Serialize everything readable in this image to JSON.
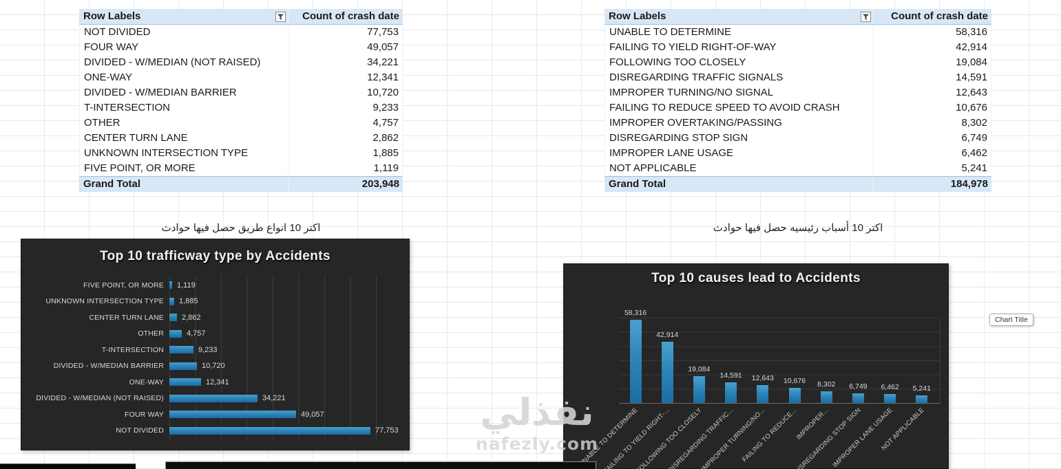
{
  "tables": {
    "left": {
      "header_label": "Row Labels",
      "header_count": "Count of crash date",
      "rows": [
        {
          "label": "NOT DIVIDED",
          "value": "77,753"
        },
        {
          "label": "FOUR WAY",
          "value": "49,057"
        },
        {
          "label": "DIVIDED - W/MEDIAN (NOT RAISED)",
          "value": "34,221"
        },
        {
          "label": "ONE-WAY",
          "value": "12,341"
        },
        {
          "label": "DIVIDED - W/MEDIAN BARRIER",
          "value": "10,720"
        },
        {
          "label": "T-INTERSECTION",
          "value": "9,233"
        },
        {
          "label": "OTHER",
          "value": "4,757"
        },
        {
          "label": "CENTER TURN LANE",
          "value": "2,862"
        },
        {
          "label": "UNKNOWN INTERSECTION TYPE",
          "value": "1,885"
        },
        {
          "label": "FIVE POINT, OR MORE",
          "value": "1,119"
        }
      ],
      "total_label": "Grand Total",
      "total_value": "203,948"
    },
    "right": {
      "header_label": "Row Labels",
      "header_count": "Count of crash date",
      "rows": [
        {
          "label": "UNABLE TO DETERMINE",
          "value": "58,316"
        },
        {
          "label": "FAILING TO YIELD RIGHT-OF-WAY",
          "value": "42,914"
        },
        {
          "label": "FOLLOWING TOO CLOSELY",
          "value": "19,084"
        },
        {
          "label": "DISREGARDING TRAFFIC SIGNALS",
          "value": "14,591"
        },
        {
          "label": "IMPROPER TURNING/NO SIGNAL",
          "value": "12,643"
        },
        {
          "label": "FAILING TO REDUCE SPEED TO AVOID CRASH",
          "value": "10,676"
        },
        {
          "label": "IMPROPER OVERTAKING/PASSING",
          "value": "8,302"
        },
        {
          "label": "DISREGARDING STOP SIGN",
          "value": "6,749"
        },
        {
          "label": "IMPROPER LANE USAGE",
          "value": "6,462"
        },
        {
          "label": "NOT APPLICABLE",
          "value": "5,241"
        }
      ],
      "total_label": "Grand Total",
      "total_value": "184,978"
    }
  },
  "captions": {
    "left_arabic": "اكتر 10 انواع طريق حصل فيها حوادث",
    "right_arabic": "اكتر 10 أسباب رئيسيه حصل فيها حوادث"
  },
  "chart_data": [
    {
      "type": "bar",
      "orientation": "horizontal",
      "title": "Top 10 trafficway type by Accidents",
      "categories": [
        "FIVE POINT, OR MORE",
        "UNKNOWN INTERSECTION TYPE",
        "CENTER TURN LANE",
        "OTHER",
        "T-INTERSECTION",
        "DIVIDED - W/MEDIAN BARRIER",
        "ONE-WAY",
        "DIVIDED - W/MEDIAN (NOT RAISED)",
        "FOUR WAY",
        "NOT DIVIDED"
      ],
      "values": [
        1119,
        1885,
        2862,
        4757,
        9233,
        10720,
        12341,
        34221,
        49057,
        77753
      ],
      "value_labels": [
        "1,119",
        "1,885",
        "2,862",
        "4,757",
        "9,233",
        "10,720",
        "12,341",
        "34,221",
        "49,057",
        "77,753"
      ],
      "xlim": [
        0,
        80000
      ],
      "grid": true,
      "legend": false,
      "bar_color": "#2E86B8",
      "background": "#262626"
    },
    {
      "type": "bar",
      "orientation": "vertical",
      "title": "Top 10 causes lead to Accidents",
      "categories": [
        "UNABLE TO DETERMINE",
        "FAILING TO YIELD RIGHT-...",
        "FOLLOWING TOO CLOSELY",
        "DISREGARDING TRAFFIC...",
        "IMPROPER TURNING/NO...",
        "FAILING TO REDUCE...",
        "IMPROPER...",
        "DISREGARDING STOP SIGN",
        "IMPROPER LANE USAGE",
        "NOT APPLICABLE"
      ],
      "values": [
        58316,
        42914,
        19084,
        14591,
        12643,
        10676,
        8302,
        6749,
        6462,
        5241
      ],
      "value_labels": [
        "58,316",
        "42,914",
        "19,084",
        "14,591",
        "12,643",
        "10,676",
        "8,302",
        "6,749",
        "6,462",
        "5,241"
      ],
      "ylim": [
        0,
        60000
      ],
      "grid": true,
      "legend": false,
      "bar_color": "#2E86B8",
      "background": "#262626"
    }
  ],
  "tooltip_chart_title": "Chart Title",
  "watermark": {
    "text_arabic": "نفذلي",
    "text_domain": "nafezly.com"
  },
  "colors": {
    "pivot_header_bg": "#D7E7F5",
    "pivot_border": "#9CC2E5",
    "chart_bg": "#262626",
    "bar_blue": "#2E86B8",
    "chart_text": "#D9D9D9",
    "chart_grid": "#3A3A3A"
  }
}
